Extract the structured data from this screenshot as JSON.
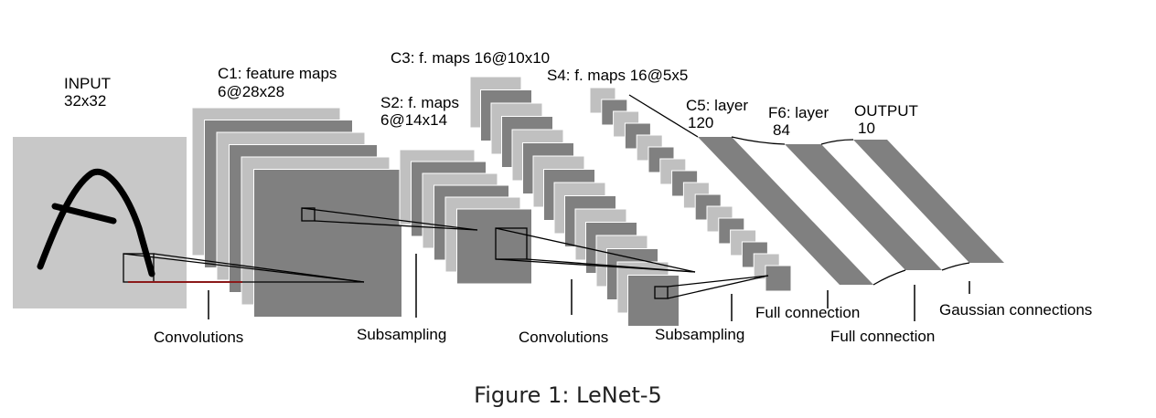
{
  "labels": {
    "input": [
      "INPUT",
      "32x32"
    ],
    "c1": [
      "C1: feature maps",
      "6@28x28"
    ],
    "s2": [
      "S2: f. maps",
      "6@14x14"
    ],
    "c3": [
      "C3: f. maps 16@10x10"
    ],
    "s4": [
      "S4: f. maps 16@5x5"
    ],
    "c5": [
      "C5: layer",
      "120"
    ],
    "f6": [
      "F6: layer",
      "84"
    ],
    "output": [
      "OUTPUT",
      "10"
    ]
  },
  "operations": {
    "conv1": "Convolutions",
    "sub1": "Subsampling",
    "conv2": "Convolutions",
    "sub2": "Subsampling",
    "full1": "Full connection",
    "full2": "Full connection",
    "gauss": "Gaussian connections"
  },
  "caption": "Figure 1: LeNet-5",
  "colors": {
    "dark_gray": "#808080",
    "light_gray": "#c0c0c0",
    "input_bg": "#c8c8c8",
    "stroke": "#000000",
    "red_line": "#8b1a1a"
  }
}
